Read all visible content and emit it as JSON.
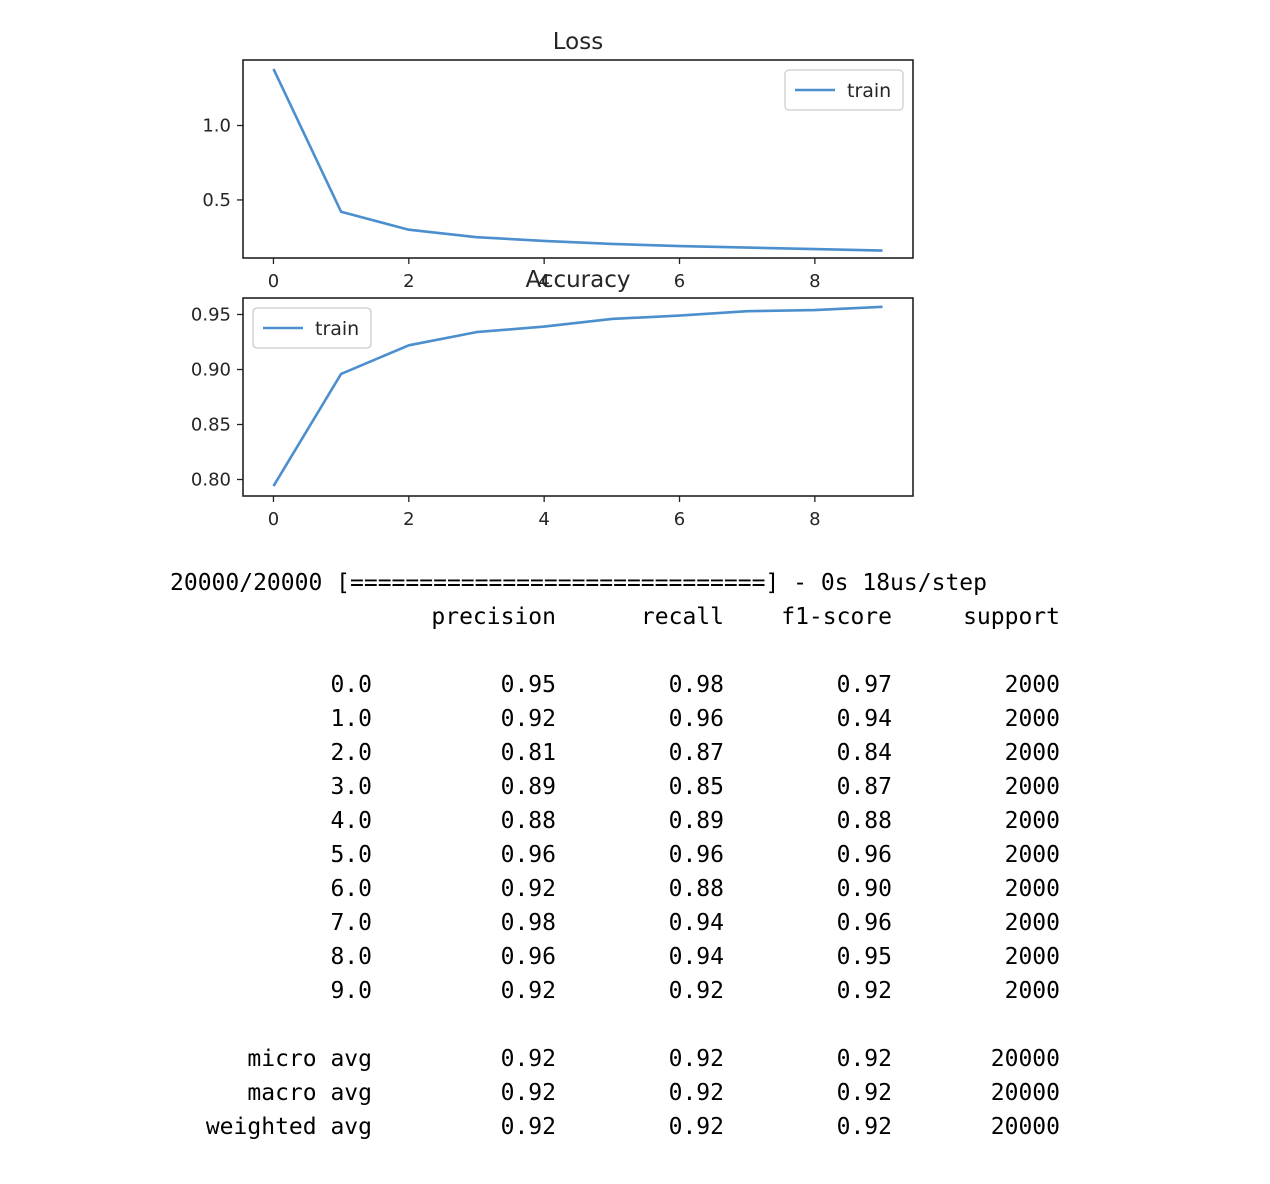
{
  "chart_data": [
    {
      "type": "line",
      "title": "Loss",
      "xlabel": "",
      "ylabel": "",
      "x": [
        0,
        1,
        2,
        3,
        4,
        5,
        6,
        7,
        8,
        9
      ],
      "series": [
        {
          "name": "train",
          "values": [
            1.38,
            0.42,
            0.3,
            0.25,
            0.225,
            0.205,
            0.19,
            0.18,
            0.17,
            0.16
          ],
          "color": "#4b8fce"
        }
      ],
      "xticks": [
        "0",
        "2",
        "4",
        "6",
        "8"
      ],
      "yticks": [
        "0.5",
        "1.0"
      ],
      "xlim": [
        -0.45,
        9.45
      ],
      "ylim": [
        0.11,
        1.44
      ],
      "grid": false,
      "legend": "upper right"
    },
    {
      "type": "line",
      "title": "Accuracy",
      "xlabel": "",
      "ylabel": "",
      "x": [
        0,
        1,
        2,
        3,
        4,
        5,
        6,
        7,
        8,
        9
      ],
      "series": [
        {
          "name": "train",
          "values": [
            0.794,
            0.896,
            0.922,
            0.934,
            0.939,
            0.946,
            0.949,
            0.953,
            0.954,
            0.957
          ],
          "color": "#4b8fce"
        }
      ],
      "xticks": [
        "0",
        "2",
        "4",
        "6",
        "8"
      ],
      "yticks": [
        "0.80",
        "0.85",
        "0.90",
        "0.95"
      ],
      "xlim": [
        -0.45,
        9.45
      ],
      "ylim": [
        0.785,
        0.965
      ],
      "grid": false,
      "legend": "upper left"
    }
  ],
  "output": {
    "progress": "20000/20000 [==============================] - 0s 18us/step",
    "headers": [
      "precision",
      "recall",
      "f1-score",
      "support"
    ],
    "rows": [
      {
        "label": "0.0",
        "precision": "0.95",
        "recall": "0.98",
        "f1": "0.97",
        "support": "2000"
      },
      {
        "label": "1.0",
        "precision": "0.92",
        "recall": "0.96",
        "f1": "0.94",
        "support": "2000"
      },
      {
        "label": "2.0",
        "precision": "0.81",
        "recall": "0.87",
        "f1": "0.84",
        "support": "2000"
      },
      {
        "label": "3.0",
        "precision": "0.89",
        "recall": "0.85",
        "f1": "0.87",
        "support": "2000"
      },
      {
        "label": "4.0",
        "precision": "0.88",
        "recall": "0.89",
        "f1": "0.88",
        "support": "2000"
      },
      {
        "label": "5.0",
        "precision": "0.96",
        "recall": "0.96",
        "f1": "0.96",
        "support": "2000"
      },
      {
        "label": "6.0",
        "precision": "0.92",
        "recall": "0.88",
        "f1": "0.90",
        "support": "2000"
      },
      {
        "label": "7.0",
        "precision": "0.98",
        "recall": "0.94",
        "f1": "0.96",
        "support": "2000"
      },
      {
        "label": "8.0",
        "precision": "0.96",
        "recall": "0.94",
        "f1": "0.95",
        "support": "2000"
      },
      {
        "label": "9.0",
        "precision": "0.92",
        "recall": "0.92",
        "f1": "0.92",
        "support": "2000"
      }
    ],
    "averages": [
      {
        "label": "micro avg",
        "precision": "0.92",
        "recall": "0.92",
        "f1": "0.92",
        "support": "20000"
      },
      {
        "label": "macro avg",
        "precision": "0.92",
        "recall": "0.92",
        "f1": "0.92",
        "support": "20000"
      },
      {
        "label": "weighted avg",
        "precision": "0.92",
        "recall": "0.92",
        "f1": "0.92",
        "support": "20000"
      }
    ]
  }
}
